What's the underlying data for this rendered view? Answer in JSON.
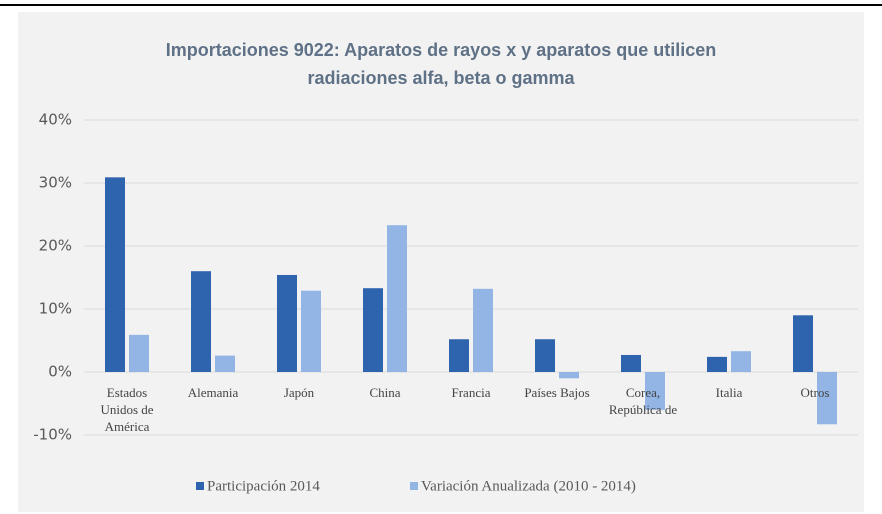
{
  "chart_data": {
    "type": "bar",
    "title": "Importaciones 9022: Aparatos de rayos x y aparatos que utilicen radiaciones  alfa, beta o gamma",
    "categories": [
      "Estados Unidos de América",
      "Alemania",
      "Japón",
      "China",
      "Francia",
      "Países Bajos",
      "Corea, República de",
      "Italia",
      "Otros"
    ],
    "series": [
      {
        "name": "Participación 2014",
        "color": "#2e63ad",
        "values": [
          30.9,
          16,
          15.4,
          13.3,
          5.2,
          5.2,
          2.7,
          2.4,
          9
        ]
      },
      {
        "name": "Variación Anualizada (2010 - 2014)",
        "color": "#93b5e6",
        "values": [
          5.9,
          2.6,
          12.9,
          23.3,
          13.2,
          -1,
          -6,
          3.3,
          -8.3
        ]
      }
    ],
    "ylim": [
      -10,
      40
    ],
    "yticks": [
      {
        "value": -10,
        "label": "-10%"
      },
      {
        "value": 0,
        "label": "0%"
      },
      {
        "value": 10,
        "label": "10%"
      },
      {
        "value": 20,
        "label": "20%"
      },
      {
        "value": 30,
        "label": "30%"
      },
      {
        "value": 40,
        "label": "40%"
      }
    ],
    "grid": true,
    "legend": "bottom"
  }
}
